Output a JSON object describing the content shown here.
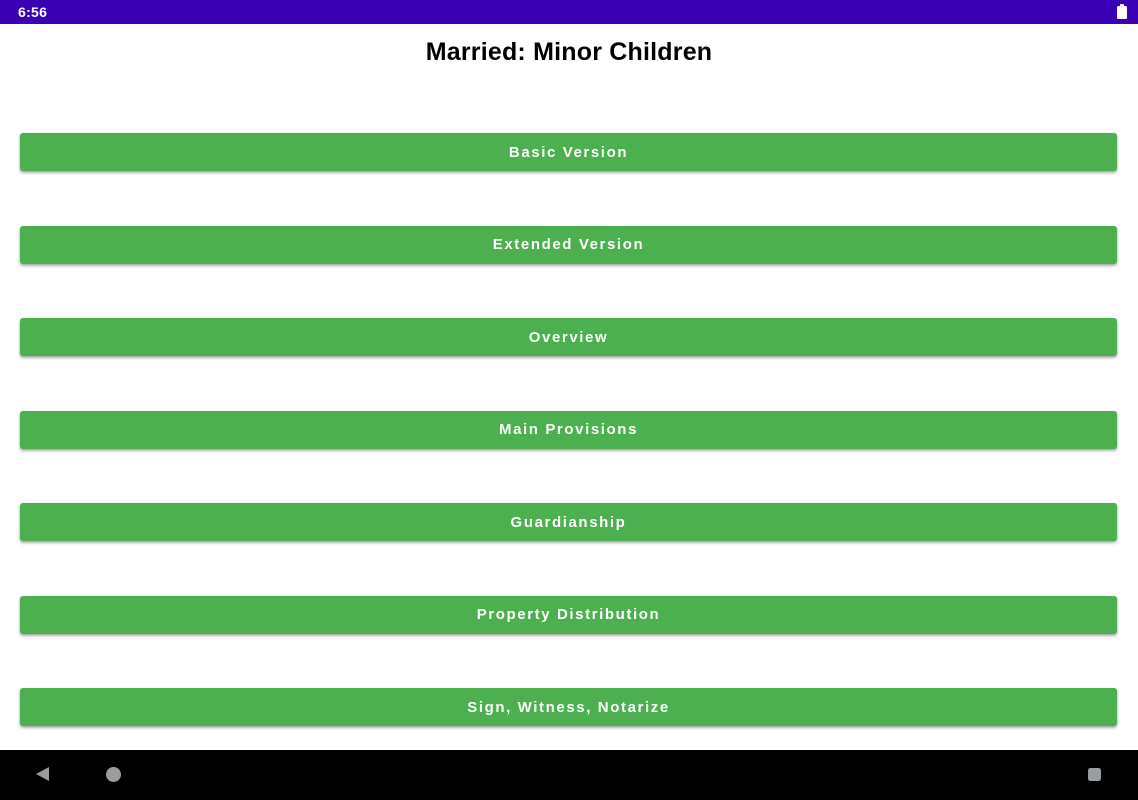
{
  "status_bar": {
    "time": "6:56",
    "battery_icon": "battery-full",
    "bg_color": "#3A00B3"
  },
  "header": {
    "title": "Married: Minor Children"
  },
  "menu": {
    "buttons": [
      {
        "label": "Basic Version"
      },
      {
        "label": "Extended Version"
      },
      {
        "label": "Overview"
      },
      {
        "label": "Main Provisions"
      },
      {
        "label": "Guardianship"
      },
      {
        "label": "Property Distribution"
      },
      {
        "label": "Sign, Witness, Notarize"
      }
    ]
  },
  "nav_bar": {
    "back_icon": "back-triangle",
    "home_icon": "home-circle",
    "recents_icon": "recents-square",
    "bg_color": "#000000"
  },
  "colors": {
    "button_bg": "#4CAF50",
    "button_text": "#FFFFFF",
    "status_bar_bg": "#3A00B3",
    "nav_bar_bg": "#000000",
    "nav_icon_gray": "#9A9DA0"
  }
}
